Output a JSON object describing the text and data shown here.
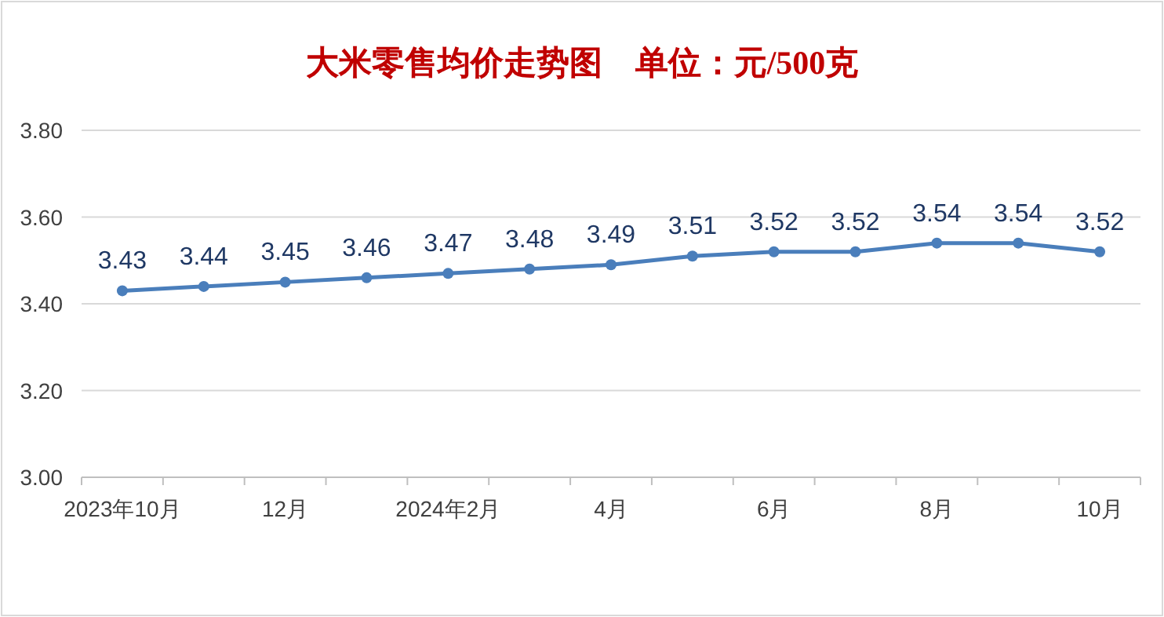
{
  "chart_data": {
    "type": "line",
    "title": "大米零售均价走势图　单位：元/500克",
    "categories": [
      "2023年10月",
      null,
      "12月",
      null,
      "2024年2月",
      null,
      "4月",
      null,
      "6月",
      null,
      "8月",
      null,
      "10月"
    ],
    "values": [
      3.43,
      3.44,
      3.45,
      3.46,
      3.47,
      3.48,
      3.49,
      3.51,
      3.52,
      3.52,
      3.54,
      3.54,
      3.52
    ],
    "color": "#4a7ebb",
    "ylim": [
      3,
      3.8
    ],
    "yticks": [
      {
        "value": 3,
        "label": "3.00"
      },
      {
        "value": 3.2,
        "label": "3.20"
      },
      {
        "value": 3.4,
        "label": "3.40"
      },
      {
        "value": 3.6,
        "label": "3.60"
      },
      {
        "value": 3.8,
        "label": "3.80"
      }
    ],
    "grid": "y",
    "data_labels": true,
    "marker": "circle"
  }
}
